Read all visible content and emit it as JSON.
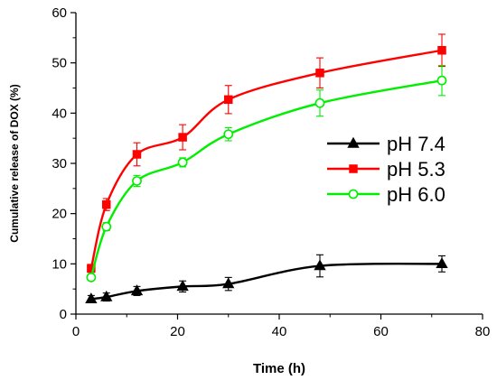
{
  "chart_data": {
    "type": "line",
    "xlabel": "Time (h)",
    "ylabel": "Cumulative release of DOX (%)",
    "xlim": [
      0,
      80
    ],
    "ylim": [
      0,
      60
    ],
    "xticks": [
      0,
      20,
      40,
      60,
      80
    ],
    "yticks": [
      0,
      10,
      20,
      30,
      40,
      50,
      60
    ],
    "grid": false,
    "legend_position": "right",
    "series": [
      {
        "name": "pH 7.4",
        "color": "#000000",
        "marker": "triangle-filled",
        "x": [
          3,
          6,
          12,
          21,
          30,
          48,
          72
        ],
        "y": [
          3.0,
          3.4,
          4.6,
          5.5,
          6.0,
          9.6,
          10.0
        ],
        "error": [
          0.7,
          0.8,
          0.9,
          1.1,
          1.3,
          2.2,
          1.6
        ]
      },
      {
        "name": "pH 5.3",
        "color": "#ff0000",
        "marker": "square-filled",
        "x": [
          3,
          6,
          12,
          21,
          30,
          48,
          72
        ],
        "y": [
          9.1,
          21.8,
          31.8,
          35.2,
          42.7,
          48.0,
          52.5
        ],
        "error": [
          0.8,
          1.2,
          2.3,
          2.5,
          2.8,
          3.0,
          3.2
        ]
      },
      {
        "name": "pH 6.0",
        "color": "#00ee00",
        "marker": "circle-open",
        "x": [
          3,
          6,
          12,
          21,
          30,
          48,
          72
        ],
        "y": [
          7.3,
          17.4,
          26.5,
          30.2,
          35.8,
          42.0,
          46.5
        ],
        "error": [
          0.5,
          0.8,
          1.1,
          0.9,
          1.3,
          2.6,
          3.0
        ]
      }
    ]
  }
}
